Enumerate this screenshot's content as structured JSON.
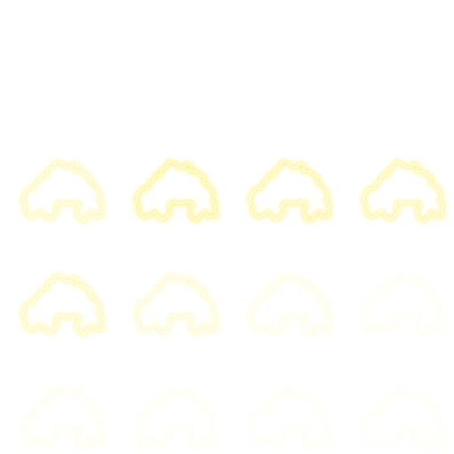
{
  "sprite_sheet": {
    "columns": 4,
    "rows": 4,
    "glow_color": "#fff27a",
    "core_color": "#fffbe0",
    "background": "#ffffff",
    "frames": [
      {
        "index": 0,
        "row": 0,
        "col": 0,
        "opacity": 0.0
      },
      {
        "index": 1,
        "row": 0,
        "col": 1,
        "opacity": 0.0
      },
      {
        "index": 2,
        "row": 0,
        "col": 2,
        "opacity": 0.0
      },
      {
        "index": 3,
        "row": 0,
        "col": 3,
        "opacity": 0.0
      },
      {
        "index": 4,
        "row": 1,
        "col": 0,
        "opacity": 0.62
      },
      {
        "index": 5,
        "row": 1,
        "col": 1,
        "opacity": 0.95
      },
      {
        "index": 6,
        "row": 1,
        "col": 2,
        "opacity": 0.85
      },
      {
        "index": 7,
        "row": 1,
        "col": 3,
        "opacity": 0.8
      },
      {
        "index": 8,
        "row": 2,
        "col": 0,
        "opacity": 0.62
      },
      {
        "index": 9,
        "row": 2,
        "col": 1,
        "opacity": 0.4
      },
      {
        "index": 10,
        "row": 2,
        "col": 2,
        "opacity": 0.22
      },
      {
        "index": 11,
        "row": 2,
        "col": 3,
        "opacity": 0.1
      },
      {
        "index": 12,
        "row": 3,
        "col": 0,
        "opacity": 0.12
      },
      {
        "index": 13,
        "row": 3,
        "col": 1,
        "opacity": 0.1
      },
      {
        "index": 14,
        "row": 3,
        "col": 2,
        "opacity": 0.09
      },
      {
        "index": 15,
        "row": 3,
        "col": 3,
        "opacity": 0.08
      }
    ]
  }
}
